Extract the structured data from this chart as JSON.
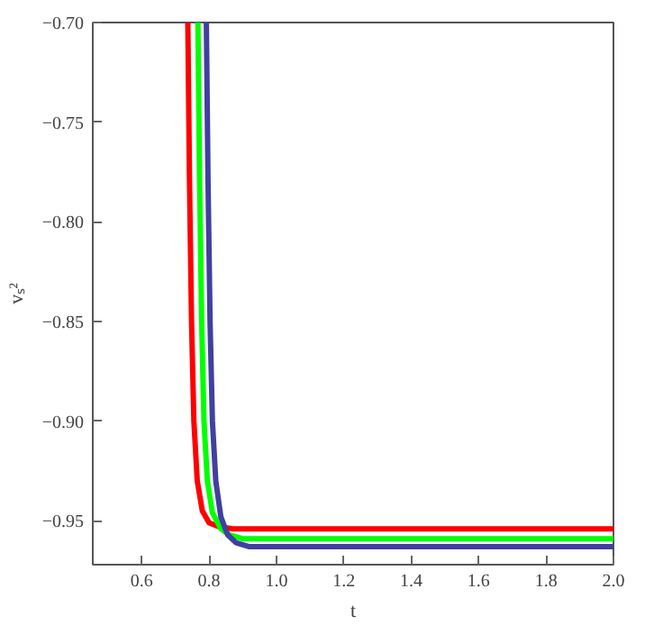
{
  "chart_data": {
    "type": "line",
    "xlabel": "t",
    "ylabel": "vₛ²",
    "xlim": [
      0.455,
      2.0
    ],
    "ylim": [
      -0.972,
      -0.7
    ],
    "xticks": [
      {
        "value": 0.6,
        "label": "0.6"
      },
      {
        "value": 0.8,
        "label": "0.8"
      },
      {
        "value": 1.0,
        "label": "1.0"
      },
      {
        "value": 1.2,
        "label": "1.2"
      },
      {
        "value": 1.4,
        "label": "1.4"
      },
      {
        "value": 1.6,
        "label": "1.6"
      },
      {
        "value": 1.8,
        "label": "1.8"
      },
      {
        "value": 2.0,
        "label": "2.0"
      }
    ],
    "yticks": [
      {
        "value": -0.7,
        "label": "−0.70"
      },
      {
        "value": -0.75,
        "label": "−0.75"
      },
      {
        "value": -0.8,
        "label": "−0.80"
      },
      {
        "value": -0.85,
        "label": "−0.85"
      },
      {
        "value": -0.9,
        "label": "−0.90"
      },
      {
        "value": -0.95,
        "label": "−0.95"
      }
    ],
    "grid": false,
    "marker": "none",
    "line_style": "solid",
    "series": [
      {
        "color": "#ff0000",
        "x": [
          0.737,
          0.742,
          0.748,
          0.755,
          0.765,
          0.78,
          0.8,
          0.83,
          0.87,
          2.0
        ],
        "values": [
          -0.7,
          -0.78,
          -0.85,
          -0.9,
          -0.93,
          -0.945,
          -0.951,
          -0.953,
          -0.954,
          -0.954
        ]
      },
      {
        "color": "#00ff00",
        "x": [
          0.767,
          0.772,
          0.778,
          0.785,
          0.795,
          0.81,
          0.835,
          0.86,
          0.9,
          2.0
        ],
        "values": [
          -0.7,
          -0.78,
          -0.85,
          -0.9,
          -0.93,
          -0.946,
          -0.954,
          -0.957,
          -0.959,
          -0.959
        ]
      },
      {
        "color": "#4040a0",
        "x": [
          0.792,
          0.797,
          0.803,
          0.81,
          0.82,
          0.835,
          0.855,
          0.88,
          0.92,
          2.0
        ],
        "values": [
          -0.7,
          -0.78,
          -0.85,
          -0.9,
          -0.93,
          -0.948,
          -0.957,
          -0.961,
          -0.963,
          -0.963
        ]
      }
    ]
  }
}
